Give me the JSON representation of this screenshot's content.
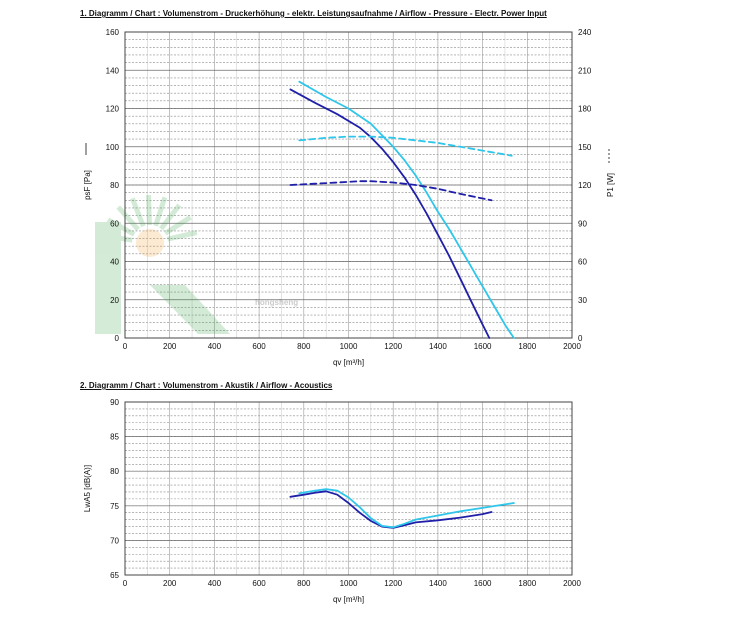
{
  "chart_data": [
    {
      "type": "line",
      "title": "1. Diagramm / Chart :   Volumenstrom - Druckerhöhung - elektr. Leistungsaufnahme / Airflow - Pressure - Electr. Power Input",
      "xlabel": "qv [m³/h]",
      "ylabel": "psF [Pa]",
      "y2label": "P1 [W]",
      "xlim": [
        0,
        2000
      ],
      "ylim": [
        0,
        160
      ],
      "y2lim": [
        0,
        240
      ],
      "x_ticks": [
        "0",
        "200",
        "400",
        "600",
        "800",
        "1000",
        "1200",
        "1400",
        "1600",
        "1800",
        "2000"
      ],
      "y_ticks": [
        "0",
        "20",
        "40",
        "60",
        "80",
        "100",
        "120",
        "140",
        "160"
      ],
      "y2_ticks": [
        "0",
        "30",
        "60",
        "90",
        "120",
        "150",
        "180",
        "210",
        "240"
      ],
      "grid": true,
      "watermark": "hongsheng",
      "series": [
        {
          "axis": "left",
          "style": "solid",
          "color": "#1f1fa8",
          "x": [
            740,
            850,
            950,
            1050,
            1100,
            1150,
            1200,
            1250,
            1300,
            1350,
            1400,
            1450,
            1500,
            1550,
            1600,
            1630
          ],
          "y": [
            130,
            123,
            117,
            110,
            105,
            99,
            92,
            84,
            75,
            65,
            54,
            43,
            31,
            19,
            7,
            0
          ]
        },
        {
          "axis": "left",
          "style": "solid",
          "color": "#2ec6ea",
          "x": [
            780,
            900,
            1000,
            1100,
            1150,
            1200,
            1250,
            1300,
            1350,
            1400,
            1450,
            1500,
            1550,
            1600,
            1650,
            1700,
            1740
          ],
          "y": [
            134,
            126,
            120,
            112,
            106,
            100,
            93,
            85,
            76,
            66,
            57,
            47,
            37,
            27,
            17,
            7,
            0
          ]
        },
        {
          "axis": "right",
          "style": "dashed",
          "color": "#2ec6ea",
          "x": [
            780,
            900,
            1000,
            1100,
            1200,
            1300,
            1400,
            1500,
            1600,
            1730
          ],
          "y": [
            155,
            157,
            158,
            158,
            157,
            155,
            153,
            150,
            147,
            143
          ]
        },
        {
          "axis": "right",
          "style": "dashed",
          "color": "#1f1fa8",
          "x": [
            740,
            850,
            950,
            1050,
            1100,
            1200,
            1300,
            1400,
            1500,
            1640
          ],
          "y": [
            120,
            121,
            122,
            123,
            123,
            122,
            120,
            117,
            113,
            108
          ]
        }
      ]
    },
    {
      "type": "line",
      "title": "2. Diagramm / Chart :   Volumenstrom - Akustik / Airflow - Acoustics",
      "xlabel": "qv [m³/h]",
      "ylabel": "LwA5 [dB(A)]",
      "xlim": [
        0,
        2000
      ],
      "ylim": [
        65,
        90
      ],
      "x_ticks": [
        "0",
        "200",
        "400",
        "600",
        "800",
        "1000",
        "1200",
        "1400",
        "1600",
        "1800",
        "2000"
      ],
      "y_ticks": [
        "65",
        "70",
        "75",
        "80",
        "85",
        "90"
      ],
      "grid": true,
      "series": [
        {
          "axis": "left",
          "style": "solid",
          "color": "#1f1fa8",
          "x": [
            740,
            800,
            850,
            900,
            950,
            1000,
            1050,
            1100,
            1150,
            1200,
            1250,
            1300,
            1400,
            1500,
            1600,
            1640
          ],
          "y": [
            76.3,
            76.6,
            76.9,
            77.1,
            76.6,
            75.4,
            74.0,
            72.8,
            72.0,
            71.8,
            72.2,
            72.6,
            72.9,
            73.3,
            73.8,
            74.1
          ]
        },
        {
          "axis": "left",
          "style": "solid",
          "color": "#2ec6ea",
          "x": [
            780,
            850,
            900,
            950,
            1000,
            1050,
            1100,
            1150,
            1200,
            1250,
            1300,
            1400,
            1500,
            1600,
            1700,
            1740
          ],
          "y": [
            76.8,
            77.2,
            77.4,
            77.2,
            76.2,
            74.8,
            73.2,
            72.1,
            71.9,
            72.4,
            73.0,
            73.6,
            74.2,
            74.7,
            75.2,
            75.4
          ]
        }
      ]
    }
  ]
}
